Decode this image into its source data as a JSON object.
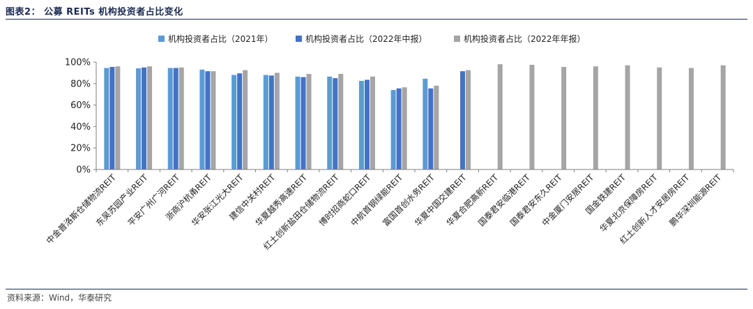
{
  "figure": {
    "title": "图表2：  公募 REITs 机构投资者占比变化",
    "source": "资料来源：Wind，华泰研究"
  },
  "chart_data": {
    "type": "bar",
    "title": "",
    "xlabel": "",
    "ylabel": "",
    "ylim": [
      0,
      100
    ],
    "yticks": [
      "0%",
      "20%",
      "40%",
      "60%",
      "80%",
      "100%"
    ],
    "legend_position": "top",
    "grid": false,
    "categories": [
      "中金普洛斯仓储物流REIT",
      "东吴苏园产业REIT",
      "平安广州广河REIT",
      "浙商沪杭甬REIT",
      "华安张江光大REIT",
      "建信中关村REIT",
      "华夏越秀高速REIT",
      "红土创新盐田仓储物流REIT",
      "博时招商蛇口REIT",
      "中航首钢绿能REIT",
      "富国首创水务REIT",
      "华夏中国交建REIT",
      "华夏合肥高新REIT",
      "国泰君安临港REIT",
      "国泰君安东久REIT",
      "中金厦门安居REIT",
      "国金铁建REIT",
      "华夏北京保障房REIT",
      "红土创新人才安居房REIT",
      "鹏华深圳能源REIT"
    ],
    "series": [
      {
        "name": "机构投资者占比（2021年）",
        "color": "#5b9bd5",
        "values": [
          94.5,
          94.2,
          94.5,
          93.0,
          88.0,
          88.0,
          86.5,
          86.5,
          82.5,
          74.0,
          84.5,
          null,
          null,
          null,
          null,
          null,
          null,
          null,
          null,
          null
        ]
      },
      {
        "name": "机构投资者占比（2022年中报）",
        "color": "#4472c4",
        "values": [
          95.5,
          95.0,
          94.5,
          91.5,
          89.5,
          87.5,
          86.0,
          85.0,
          83.5,
          75.5,
          75.5,
          91.5,
          null,
          null,
          null,
          null,
          null,
          null,
          null,
          null
        ]
      },
      {
        "name": "机构投资者占比（2022年年报）",
        "color": "#a5a5a5",
        "values": [
          96.0,
          96.0,
          95.0,
          91.5,
          92.5,
          90.0,
          89.0,
          89.0,
          86.5,
          76.5,
          78.0,
          92.5,
          98.0,
          97.5,
          95.5,
          96.0,
          97.0,
          95.0,
          94.5,
          97.0
        ]
      }
    ]
  }
}
